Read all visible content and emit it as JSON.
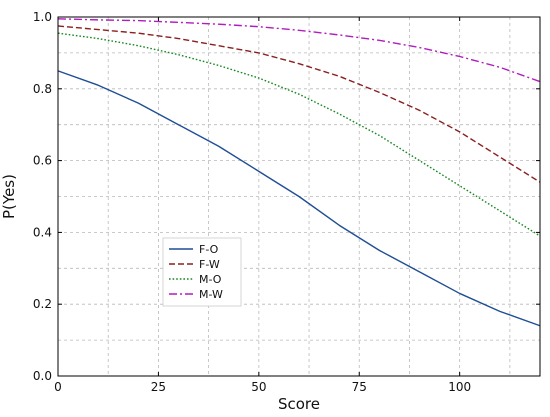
{
  "chart_data": {
    "type": "line",
    "title": "",
    "xlabel": "Score",
    "ylabel": "P(Yes)",
    "xlim": [
      0,
      120
    ],
    "ylim": [
      0.0,
      1.0
    ],
    "x_ticks": [
      0,
      25,
      50,
      75,
      100
    ],
    "y_ticks": [
      0.0,
      0.2,
      0.4,
      0.6,
      0.8,
      1.0
    ],
    "x_tick_labels": [
      "0",
      "25",
      "50",
      "75",
      "100"
    ],
    "y_tick_labels": [
      "0.0",
      "0.2",
      "0.4",
      "0.6",
      "0.8",
      "1.0"
    ],
    "grid": true,
    "grid_style": "dashed",
    "legend_position": "lower-left",
    "x": [
      0,
      10,
      20,
      30,
      40,
      50,
      60,
      70,
      80,
      90,
      100,
      110,
      120
    ],
    "series": [
      {
        "name": "F-O",
        "color": "#1f4e96",
        "dash": "solid",
        "values": [
          0.85,
          0.81,
          0.76,
          0.7,
          0.64,
          0.57,
          0.5,
          0.42,
          0.35,
          0.29,
          0.23,
          0.18,
          0.14
        ]
      },
      {
        "name": "F-W",
        "color": "#8b1e1e",
        "dash": "dashed",
        "values": [
          0.975,
          0.965,
          0.955,
          0.94,
          0.92,
          0.9,
          0.87,
          0.835,
          0.79,
          0.74,
          0.68,
          0.61,
          0.54
        ]
      },
      {
        "name": "M-O",
        "color": "#15881f",
        "dash": "dotted",
        "values": [
          0.955,
          0.94,
          0.92,
          0.895,
          0.865,
          0.83,
          0.785,
          0.73,
          0.67,
          0.6,
          0.53,
          0.46,
          0.39
        ]
      },
      {
        "name": "M-W",
        "color": "#b01cc0",
        "dash": "dashdot",
        "values": [
          0.995,
          0.992,
          0.99,
          0.985,
          0.98,
          0.973,
          0.963,
          0.95,
          0.935,
          0.915,
          0.89,
          0.86,
          0.82
        ]
      }
    ]
  }
}
